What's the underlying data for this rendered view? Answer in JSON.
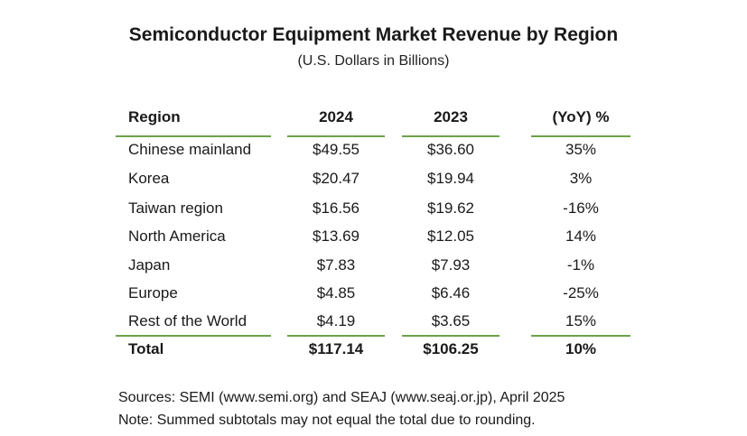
{
  "title": "Semiconductor Equipment Market Revenue by Region",
  "subtitle": "(U.S. Dollars in Billions)",
  "table": {
    "headers": [
      "Region",
      "2024",
      "2023",
      "(YoY) %"
    ],
    "rows": [
      [
        "Chinese mainland",
        "$49.55",
        "$36.60",
        "35%"
      ],
      [
        "Korea",
        "$20.47",
        "$19.94",
        "3%"
      ],
      [
        "Taiwan region",
        "$16.56",
        "$19.62",
        "-16%"
      ],
      [
        "North America",
        "$13.69",
        "$12.05",
        "14%"
      ],
      [
        "Japan",
        "$7.83",
        "$7.93",
        "-1%"
      ],
      [
        "Europe",
        "$4.85",
        "$6.46",
        "-25%"
      ],
      [
        "Rest of the World",
        "$4.19",
        "$3.65",
        "15%"
      ]
    ],
    "total": [
      "Total",
      "$117.14",
      "$106.25",
      "10%"
    ]
  },
  "sources": "Sources: SEMI (www.semi.org) and SEAJ (www.seaj.or.jp), April 2025",
  "note": "Note: Summed subtotals may not equal the total due to rounding.",
  "colors": {
    "rule": "#6ba34a",
    "text": "#1a1a1a"
  }
}
